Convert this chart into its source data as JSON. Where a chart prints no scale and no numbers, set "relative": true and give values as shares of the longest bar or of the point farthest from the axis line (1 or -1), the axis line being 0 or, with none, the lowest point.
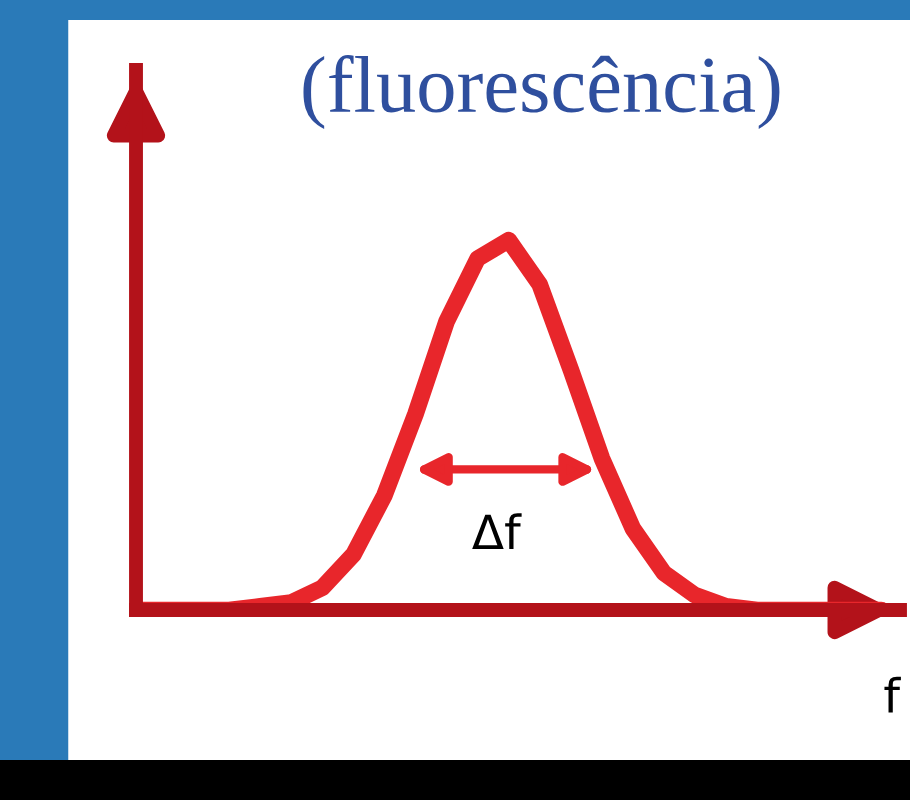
{
  "chart_data": {
    "type": "line",
    "title": "(fluorescência)",
    "xlabel": "f",
    "annotations": [
      "Δf"
    ],
    "categories": [
      null,
      null,
      null,
      null,
      null,
      null,
      null,
      null,
      null,
      null,
      null,
      null,
      null,
      null,
      null,
      null,
      null,
      null,
      null,
      null,
      null,
      null,
      null,
      null,
      null
    ],
    "values": [
      0,
      0,
      0,
      0,
      0.01,
      0.02,
      0.06,
      0.15,
      0.31,
      0.53,
      0.78,
      0.95,
      1,
      0.88,
      0.65,
      0.41,
      0.22,
      0.1,
      0.04,
      0.01,
      0,
      0,
      0,
      0,
      0
    ],
    "color": "#e8262b",
    "relative": true,
    "tick_labels": false
  }
}
